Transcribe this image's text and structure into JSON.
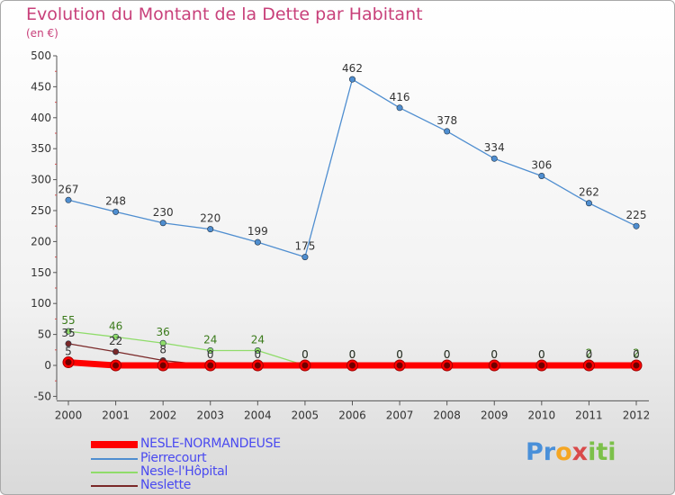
{
  "chart_data": {
    "type": "line",
    "title": "Evolution du Montant de la Dette par Habitant",
    "subtitle": "(en €)",
    "xlabel": "",
    "ylabel": "",
    "ylim": [
      -50,
      500
    ],
    "yticks": [
      -50,
      0,
      50,
      100,
      150,
      200,
      250,
      300,
      350,
      400,
      450,
      500
    ],
    "categories": [
      "2000",
      "2001",
      "2002",
      "2003",
      "2004",
      "2005",
      "2006",
      "2007",
      "2008",
      "2009",
      "2010",
      "2011",
      "2012"
    ],
    "legend_position": "bottom-left",
    "series": [
      {
        "name": "Pierrecourt",
        "color": "#4f8ed0",
        "values": [
          267,
          248,
          230,
          220,
          199,
          175,
          462,
          416,
          378,
          334,
          306,
          262,
          225
        ],
        "labels": [
          "267",
          "248",
          "230",
          "220",
          "199",
          "175",
          "462",
          "416",
          "378",
          "334",
          "306",
          "262",
          "225"
        ]
      },
      {
        "name": "Nesle-l'Hôpital",
        "color": "#8fdc6a",
        "values": [
          55,
          46,
          36,
          24,
          24,
          0,
          0,
          0,
          0,
          0,
          0,
          2,
          2
        ],
        "labels": [
          "55",
          "46",
          "36",
          "24",
          "24",
          "0",
          "0",
          "0",
          "0",
          "0",
          "0",
          "2",
          "2"
        ]
      },
      {
        "name": "Neslette",
        "color": "#7a2828",
        "values": [
          35,
          22,
          8,
          0,
          0,
          0,
          0,
          0,
          0,
          0,
          0,
          0,
          0
        ],
        "labels": [
          "35",
          "22",
          "8",
          "0",
          "0",
          "0",
          "0",
          "0",
          "0",
          "0",
          "0",
          "0",
          "0"
        ]
      },
      {
        "name": "NESLE-NORMANDEUSE",
        "color": "#ff0000",
        "values": [
          5,
          0,
          0,
          0,
          0,
          0,
          0,
          0,
          0,
          0,
          0,
          0,
          0
        ],
        "labels": [
          "5",
          "",
          "",
          "",
          "",
          "",
          "",
          "",
          "",
          "",
          "",
          "",
          ""
        ]
      }
    ]
  },
  "legend": {
    "items": [
      {
        "label": "NESLE-NORMANDEUSE",
        "color": "#ff0000"
      },
      {
        "label": "Pierrecourt",
        "color": "#4f8ed0"
      },
      {
        "label": "Nesle-l'Hôpital",
        "color": "#8fdc6a"
      },
      {
        "label": "Neslette",
        "color": "#7a2828"
      }
    ]
  },
  "logo": {
    "parts": [
      {
        "text": "Pr",
        "color": "#4a90d9"
      },
      {
        "text": "o",
        "color": "#f5a623"
      },
      {
        "text": "x",
        "color": "#d94a4a"
      },
      {
        "text": "iti",
        "color": "#7cc04a"
      }
    ]
  }
}
